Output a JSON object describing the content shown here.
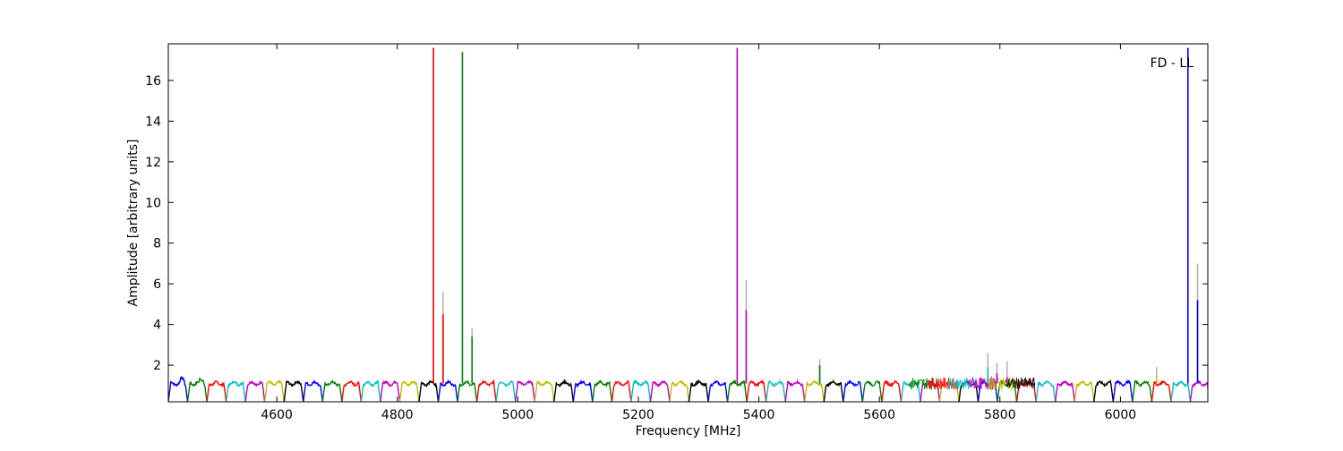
{
  "chart_data": {
    "type": "line",
    "annotation": "FD - LL",
    "xlabel": "Frequency [MHz]",
    "ylabel": "Amplitude [arbitrary units]",
    "xlim": [
      4420,
      6145
    ],
    "ylim": [
      0.2,
      17.8
    ],
    "xticks": [
      4600,
      4800,
      5000,
      5200,
      5400,
      5600,
      5800,
      6000
    ],
    "yticks": [
      2,
      4,
      6,
      8,
      10,
      12,
      14,
      16
    ],
    "grid": false,
    "legend": "none",
    "color_cycle": [
      "#0000ff",
      "#008000",
      "#ff0000",
      "#00bfbf",
      "#bf00bf",
      "#bfbf00",
      "#000000"
    ],
    "raw_color": "#b0b0b0",
    "subband_width_mhz": 32,
    "subband_start_mhz": 4420,
    "baseline_shape": {
      "low": 0.2,
      "shoulder": 1.1,
      "note": "bandpass-shaped subbands, amplitude ~1.0-1.4"
    },
    "spikes": [
      {
        "x": 4860,
        "y": 17.6,
        "color": "#ff0000"
      },
      {
        "x": 4876,
        "y": 4.5,
        "color": "#ff0000",
        "raw_y": 5.6
      },
      {
        "x": 4908,
        "y": 17.4,
        "color": "#008000"
      },
      {
        "x": 4924,
        "y": 3.4,
        "color": "#008000",
        "raw_y": 3.8
      },
      {
        "x": 5364,
        "y": 17.6,
        "color": "#bf00bf"
      },
      {
        "x": 5379,
        "y": 4.7,
        "color": "#bf00bf",
        "raw_y": 6.2
      },
      {
        "x": 5501,
        "y": 2.0,
        "color": "#008000",
        "raw_y": 2.3
      },
      {
        "x": 5780,
        "y": 1.9,
        "color": "#00bfbf",
        "raw_y": 2.6
      },
      {
        "x": 5795,
        "y": 1.6,
        "color": "#bf00bf",
        "raw_y": 2.1
      },
      {
        "x": 5812,
        "y": 1.4,
        "color": "#bf00bf",
        "raw_y": 2.2
      },
      {
        "x": 6060,
        "y": 1.5,
        "color": "#bfbf00",
        "raw_y": 1.9
      },
      {
        "x": 6112,
        "y": 17.6,
        "color": "#0000ff"
      },
      {
        "x": 6128,
        "y": 5.2,
        "color": "#0000ff",
        "raw_y": 7.0
      }
    ]
  }
}
